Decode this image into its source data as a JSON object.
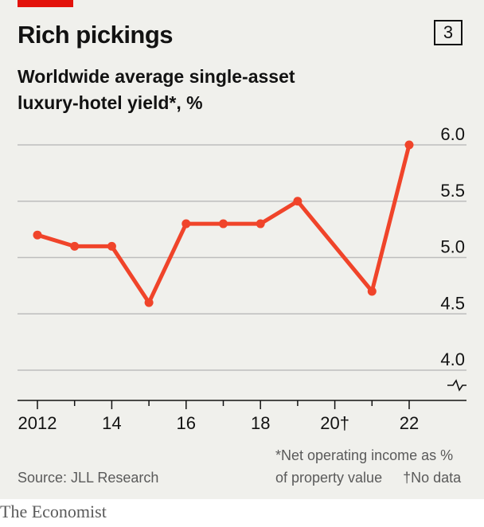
{
  "chart": {
    "title": "Rich pickings",
    "badge": "3",
    "subtitle_line1": "Worldwide average single-asset",
    "subtitle_line2": "luxury-hotel yield*, %",
    "source": "Source: JLL Research",
    "note_line1": "*Net operating income as %",
    "note_line2a": "of property value",
    "note_line2b": "†No data"
  },
  "footer": {
    "brand": "The Economist"
  },
  "colors": {
    "accent": "#e3120b",
    "line": "#f0442a",
    "grid": "#bdbdbd",
    "background": "#f0f0ec"
  },
  "chart_data": {
    "type": "line",
    "title": "Rich pickings",
    "subtitle": "Worldwide average single-asset luxury-hotel yield*, %",
    "x": [
      2012,
      2013,
      2014,
      2015,
      2016,
      2017,
      2018,
      2019,
      2021,
      2022
    ],
    "series": [
      {
        "values": [
          5.2,
          5.1,
          5.1,
          4.6,
          5.3,
          5.3,
          5.3,
          5.5,
          4.7,
          6.0
        ]
      }
    ],
    "x_tick_labels": [
      {
        "value": 2012,
        "label": "2012"
      },
      {
        "value": 2014,
        "label": "14"
      },
      {
        "value": 2016,
        "label": "16"
      },
      {
        "value": 2018,
        "label": "18"
      },
      {
        "value": 2020,
        "label": "20†"
      },
      {
        "value": 2022,
        "label": "22"
      }
    ],
    "y_ticks": [
      6.0,
      5.5,
      5.0,
      4.5,
      4.0
    ],
    "y_tick_labels": [
      "6.0",
      "5.5",
      "5.0",
      "4.5",
      "4.0"
    ],
    "ylim": [
      4.0,
      6.0
    ],
    "xlim": [
      2012,
      2022
    ],
    "y_axis_broken": true,
    "y_axis_side": "right",
    "grid": true,
    "legend": "none"
  }
}
